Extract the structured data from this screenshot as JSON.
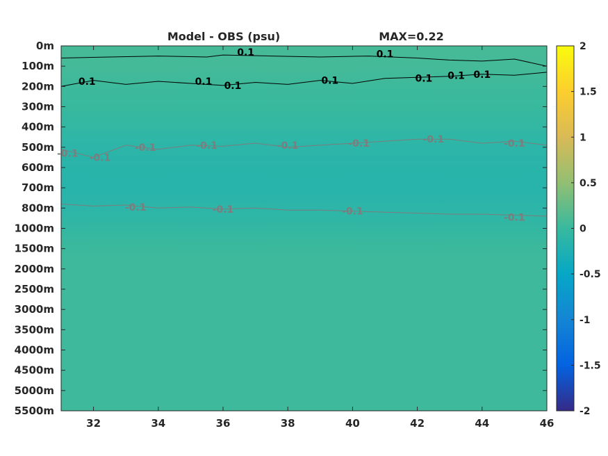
{
  "chart_data": {
    "type": "heatmap",
    "title_left": "Model - OBS (psu)",
    "title_right": "MAX=0.22",
    "xlim": [
      31,
      46
    ],
    "x_ticks": [
      32,
      34,
      36,
      38,
      40,
      42,
      44,
      46
    ],
    "y_ticks": [
      "0m",
      "100m",
      "200m",
      "300m",
      "400m",
      "500m",
      "600m",
      "700m",
      "800m",
      "1000m",
      "1500m",
      "2000m",
      "2500m",
      "3000m",
      "3500m",
      "4000m",
      "4500m",
      "5000m",
      "5500m"
    ],
    "colorbar": {
      "colormap": "parula",
      "clim": [
        -2,
        2
      ],
      "ticks": [
        2,
        1.5,
        1,
        0.5,
        0,
        -0.5,
        -1,
        -1.5,
        -2
      ],
      "tick_labels": [
        "2",
        "1.5",
        "1",
        "0.5",
        "0",
        "-0.5",
        "-1",
        "-1.5",
        "-2"
      ]
    },
    "depth_profile": [
      {
        "depth": "0m",
        "value": 0.08
      },
      {
        "depth": "100m",
        "value": 0.07
      },
      {
        "depth": "200m",
        "value": 0.03
      },
      {
        "depth": "300m",
        "value": 0.0
      },
      {
        "depth": "400m",
        "value": -0.06
      },
      {
        "depth": "500m",
        "value": -0.12
      },
      {
        "depth": "600m",
        "value": -0.15
      },
      {
        "depth": "700m",
        "value": -0.16
      },
      {
        "depth": "800m",
        "value": -0.12
      },
      {
        "depth": "1000m",
        "value": -0.05
      },
      {
        "depth": "1500m",
        "value": 0.02
      },
      {
        "depth": "2000m",
        "value": 0.04
      },
      {
        "depth": "5500m",
        "value": 0.04
      }
    ],
    "contours": [
      {
        "level": 0.1,
        "label": "0.1",
        "color": "#000000",
        "x": [
          31.0,
          32.5,
          34.0,
          35.5,
          36.0,
          37.5,
          39.0,
          40.5,
          42.0,
          43.0,
          44.0,
          45.0,
          46.0
        ],
        "depth_index": [
          0.6,
          0.55,
          0.5,
          0.55,
          0.45,
          0.5,
          0.55,
          0.5,
          0.6,
          0.7,
          0.75,
          0.65,
          1.0
        ],
        "label_positions": [
          {
            "x": 36.7,
            "depth_index": 0.3
          },
          {
            "x": 41.0,
            "depth_index": 0.4
          }
        ]
      },
      {
        "level": 0.1,
        "label": "0.1",
        "color": "#000000",
        "x": [
          31.0,
          32.0,
          33.0,
          34.0,
          35.0,
          36.0,
          37.0,
          38.0,
          39.0,
          40.0,
          41.0,
          42.0,
          43.0,
          44.0,
          45.0,
          46.0
        ],
        "depth_index": [
          2.0,
          1.7,
          1.9,
          1.75,
          1.85,
          1.95,
          1.8,
          1.9,
          1.7,
          1.85,
          1.6,
          1.55,
          1.5,
          1.4,
          1.45,
          1.3
        ],
        "label_positions": [
          {
            "x": 31.8,
            "depth_index": 1.75
          },
          {
            "x": 35.4,
            "depth_index": 1.75
          },
          {
            "x": 36.3,
            "depth_index": 1.95
          },
          {
            "x": 39.3,
            "depth_index": 1.7
          },
          {
            "x": 42.2,
            "depth_index": 1.6
          },
          {
            "x": 43.2,
            "depth_index": 1.45
          },
          {
            "x": 44.0,
            "depth_index": 1.4
          }
        ]
      },
      {
        "level": -0.1,
        "label": "-0.1",
        "color": "#7d7d7d",
        "x": [
          31.0,
          32.0,
          33.0,
          34.0,
          35.0,
          36.0,
          37.0,
          38.0,
          39.0,
          40.0,
          41.0,
          42.0,
          43.0,
          44.0,
          45.0,
          46.0
        ],
        "depth_index": [
          5.1,
          5.5,
          4.9,
          5.1,
          4.9,
          4.95,
          4.8,
          5.0,
          4.9,
          4.8,
          4.7,
          4.6,
          4.6,
          4.8,
          4.7,
          4.9
        ],
        "label_positions": [
          {
            "x": 31.2,
            "depth_index": 5.3
          },
          {
            "x": 32.2,
            "depth_index": 5.5
          },
          {
            "x": 33.6,
            "depth_index": 5.0
          },
          {
            "x": 35.5,
            "depth_index": 4.9
          },
          {
            "x": 38.0,
            "depth_index": 4.9
          },
          {
            "x": 40.2,
            "depth_index": 4.8
          },
          {
            "x": 42.5,
            "depth_index": 4.6
          },
          {
            "x": 45.0,
            "depth_index": 4.8
          }
        ]
      },
      {
        "level": -0.1,
        "label": "-0.1",
        "color": "#7d7d7d",
        "x": [
          31.0,
          32.0,
          33.0,
          34.0,
          35.0,
          36.0,
          37.0,
          38.0,
          39.0,
          40.0,
          41.0,
          42.0,
          43.0,
          44.0,
          45.0,
          46.0
        ],
        "depth_index": [
          7.8,
          7.9,
          7.85,
          8.0,
          7.95,
          8.05,
          8.0,
          8.1,
          8.1,
          8.15,
          8.2,
          8.25,
          8.3,
          8.3,
          8.35,
          8.4
        ],
        "label_positions": [
          {
            "x": 33.3,
            "depth_index": 7.95
          },
          {
            "x": 36.0,
            "depth_index": 8.05
          },
          {
            "x": 40.0,
            "depth_index": 8.15
          },
          {
            "x": 45.0,
            "depth_index": 8.45
          }
        ]
      }
    ]
  }
}
